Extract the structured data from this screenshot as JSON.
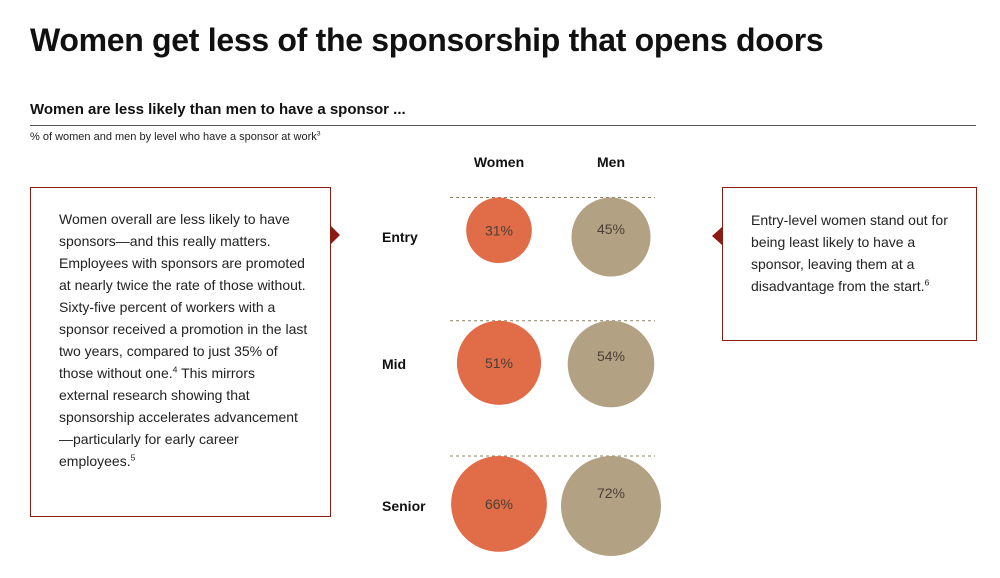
{
  "header": {
    "title": "Women get less of the sponsorship that opens doors",
    "subtitle": "Women are less likely than men to have a sponsor ...",
    "note": "% of women and men by level who have a sponsor at work",
    "note_sup": "3"
  },
  "callouts": {
    "left": {
      "text_1": "Women overall are less likely to have sponsors—and this really matters. Employees with sponsors are promoted at nearly twice the rate of those without. Sixty-five percent of workers with a sponsor received a promotion in the last two years, compared to just 35% of those without one.",
      "sup_1": "4",
      "text_2": " This mirrors external research showing that sponsorship accelerates advancement—particularly for early career employees.",
      "sup_2": "5"
    },
    "right": {
      "text": "Entry-level women stand out for being least likely to have a sponsor, leaving them at a disadvantage from the start.",
      "sup": "6"
    }
  },
  "colors": {
    "women": "#e06c48",
    "men": "#b3a184",
    "accent": "#8a1c14"
  },
  "chart_data": {
    "type": "bubble",
    "categories": [
      "Entry",
      "Mid",
      "Senior"
    ],
    "series": [
      {
        "name": "Women",
        "values": [
          31,
          51,
          66
        ],
        "labels": [
          "31%",
          "51%",
          "66%"
        ]
      },
      {
        "name": "Men",
        "values": [
          45,
          54,
          72
        ],
        "labels": [
          "45%",
          "54%",
          "72%"
        ]
      }
    ],
    "unit": "%"
  }
}
